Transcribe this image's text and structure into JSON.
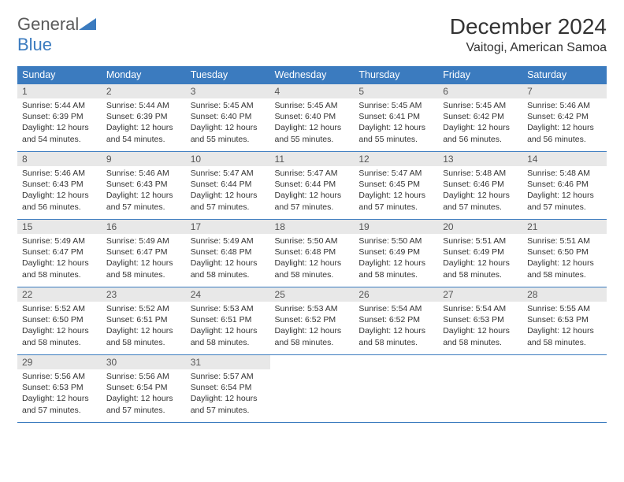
{
  "logo": {
    "text1": "General",
    "text2": "Blue"
  },
  "header": {
    "title": "December 2024",
    "location": "Vaitogi, American Samoa"
  },
  "colors": {
    "header_bg": "#3b7bbf",
    "header_text": "#ffffff",
    "daynum_bg": "#e8e8e8",
    "daynum_text": "#555555",
    "body_text": "#333333",
    "row_border": "#3b7bbf",
    "logo_gray": "#5a5a5a",
    "logo_blue": "#3b7bbf",
    "background": "#ffffff"
  },
  "typography": {
    "title_fontsize": 28,
    "location_fontsize": 16,
    "logo_fontsize": 22,
    "header_cell_fontsize": 12.5,
    "daynum_fontsize": 12,
    "cell_fontsize": 10.5
  },
  "day_headers": [
    "Sunday",
    "Monday",
    "Tuesday",
    "Wednesday",
    "Thursday",
    "Friday",
    "Saturday"
  ],
  "days": [
    {
      "n": "1",
      "sunrise": "5:44 AM",
      "sunset": "6:39 PM",
      "daylight": "12 hours and 54 minutes."
    },
    {
      "n": "2",
      "sunrise": "5:44 AM",
      "sunset": "6:39 PM",
      "daylight": "12 hours and 54 minutes."
    },
    {
      "n": "3",
      "sunrise": "5:45 AM",
      "sunset": "6:40 PM",
      "daylight": "12 hours and 55 minutes."
    },
    {
      "n": "4",
      "sunrise": "5:45 AM",
      "sunset": "6:40 PM",
      "daylight": "12 hours and 55 minutes."
    },
    {
      "n": "5",
      "sunrise": "5:45 AM",
      "sunset": "6:41 PM",
      "daylight": "12 hours and 55 minutes."
    },
    {
      "n": "6",
      "sunrise": "5:45 AM",
      "sunset": "6:42 PM",
      "daylight": "12 hours and 56 minutes."
    },
    {
      "n": "7",
      "sunrise": "5:46 AM",
      "sunset": "6:42 PM",
      "daylight": "12 hours and 56 minutes."
    },
    {
      "n": "8",
      "sunrise": "5:46 AM",
      "sunset": "6:43 PM",
      "daylight": "12 hours and 56 minutes."
    },
    {
      "n": "9",
      "sunrise": "5:46 AM",
      "sunset": "6:43 PM",
      "daylight": "12 hours and 57 minutes."
    },
    {
      "n": "10",
      "sunrise": "5:47 AM",
      "sunset": "6:44 PM",
      "daylight": "12 hours and 57 minutes."
    },
    {
      "n": "11",
      "sunrise": "5:47 AM",
      "sunset": "6:44 PM",
      "daylight": "12 hours and 57 minutes."
    },
    {
      "n": "12",
      "sunrise": "5:47 AM",
      "sunset": "6:45 PM",
      "daylight": "12 hours and 57 minutes."
    },
    {
      "n": "13",
      "sunrise": "5:48 AM",
      "sunset": "6:46 PM",
      "daylight": "12 hours and 57 minutes."
    },
    {
      "n": "14",
      "sunrise": "5:48 AM",
      "sunset": "6:46 PM",
      "daylight": "12 hours and 57 minutes."
    },
    {
      "n": "15",
      "sunrise": "5:49 AM",
      "sunset": "6:47 PM",
      "daylight": "12 hours and 58 minutes."
    },
    {
      "n": "16",
      "sunrise": "5:49 AM",
      "sunset": "6:47 PM",
      "daylight": "12 hours and 58 minutes."
    },
    {
      "n": "17",
      "sunrise": "5:49 AM",
      "sunset": "6:48 PM",
      "daylight": "12 hours and 58 minutes."
    },
    {
      "n": "18",
      "sunrise": "5:50 AM",
      "sunset": "6:48 PM",
      "daylight": "12 hours and 58 minutes."
    },
    {
      "n": "19",
      "sunrise": "5:50 AM",
      "sunset": "6:49 PM",
      "daylight": "12 hours and 58 minutes."
    },
    {
      "n": "20",
      "sunrise": "5:51 AM",
      "sunset": "6:49 PM",
      "daylight": "12 hours and 58 minutes."
    },
    {
      "n": "21",
      "sunrise": "5:51 AM",
      "sunset": "6:50 PM",
      "daylight": "12 hours and 58 minutes."
    },
    {
      "n": "22",
      "sunrise": "5:52 AM",
      "sunset": "6:50 PM",
      "daylight": "12 hours and 58 minutes."
    },
    {
      "n": "23",
      "sunrise": "5:52 AM",
      "sunset": "6:51 PM",
      "daylight": "12 hours and 58 minutes."
    },
    {
      "n": "24",
      "sunrise": "5:53 AM",
      "sunset": "6:51 PM",
      "daylight": "12 hours and 58 minutes."
    },
    {
      "n": "25",
      "sunrise": "5:53 AM",
      "sunset": "6:52 PM",
      "daylight": "12 hours and 58 minutes."
    },
    {
      "n": "26",
      "sunrise": "5:54 AM",
      "sunset": "6:52 PM",
      "daylight": "12 hours and 58 minutes."
    },
    {
      "n": "27",
      "sunrise": "5:54 AM",
      "sunset": "6:53 PM",
      "daylight": "12 hours and 58 minutes."
    },
    {
      "n": "28",
      "sunrise": "5:55 AM",
      "sunset": "6:53 PM",
      "daylight": "12 hours and 58 minutes."
    },
    {
      "n": "29",
      "sunrise": "5:56 AM",
      "sunset": "6:53 PM",
      "daylight": "12 hours and 57 minutes."
    },
    {
      "n": "30",
      "sunrise": "5:56 AM",
      "sunset": "6:54 PM",
      "daylight": "12 hours and 57 minutes."
    },
    {
      "n": "31",
      "sunrise": "5:57 AM",
      "sunset": "6:54 PM",
      "daylight": "12 hours and 57 minutes."
    }
  ],
  "labels": {
    "sunrise": "Sunrise:",
    "sunset": "Sunset:",
    "daylight": "Daylight:"
  },
  "layout": {
    "columns": 7,
    "rows": 5,
    "start_weekday": 0,
    "aspect_ratio": "792:612"
  }
}
